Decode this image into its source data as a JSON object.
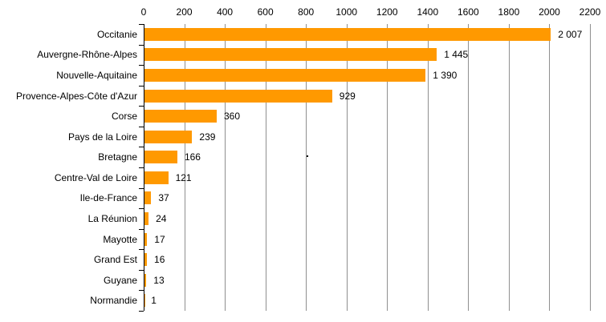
{
  "chart_data": {
    "type": "bar",
    "orientation": "horizontal",
    "title": "",
    "xlabel": "",
    "ylabel": "",
    "categories": [
      "Occitanie",
      "Auvergne-Rhône-Alpes",
      "Nouvelle-Aquitaine",
      "Provence-Alpes-Côte d'Azur",
      "Corse",
      "Pays de la Loire",
      "Bretagne",
      "Centre-Val de Loire",
      "Ile-de-France",
      "La Réunion",
      "Mayotte",
      "Grand Est",
      "Guyane",
      "Normandie"
    ],
    "values": [
      2007,
      1445,
      1390,
      929,
      360,
      239,
      166,
      121,
      37,
      24,
      17,
      16,
      13,
      1
    ],
    "value_labels": [
      "2 007",
      "1 445",
      "1 390",
      "929",
      "360",
      "239",
      "166",
      "121",
      "37",
      "24",
      "17",
      "16",
      "13",
      "1"
    ],
    "xlim": [
      0,
      2200
    ],
    "x_ticks": [
      0,
      200,
      400,
      600,
      800,
      1000,
      1200,
      1400,
      1600,
      1800,
      2000,
      2200
    ],
    "x_tick_labels": [
      "0",
      "200",
      "400",
      "600",
      "800",
      "1000",
      "1200",
      "1400",
      "1600",
      "1800",
      "2000",
      "2200"
    ],
    "grid": true,
    "legend": false,
    "bar_color": "#FF9900",
    "gridline_color": "#8f8f8f",
    "axis_color": "#000000",
    "text_color": "#000000"
  }
}
